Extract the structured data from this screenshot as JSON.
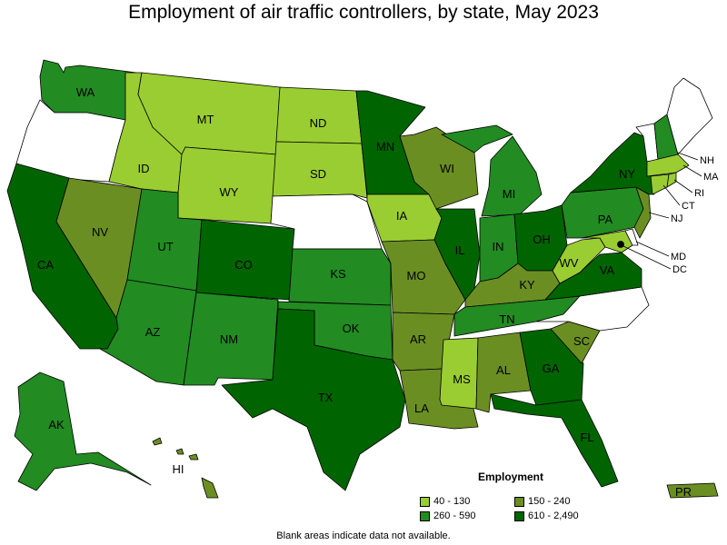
{
  "title": "Employment of air traffic controllers, by state, May 2023",
  "legend": {
    "title": "Employment",
    "items": [
      {
        "label": "40 - 130",
        "color": "#9acd32"
      },
      {
        "label": "150 - 240",
        "color": "#6b8e23"
      },
      {
        "label": "260 - 590",
        "color": "#228b22"
      },
      {
        "label": "610 - 2,490",
        "color": "#006400"
      }
    ]
  },
  "note": "Blank areas indicate data not available.",
  "colors": {
    "blank": "#ffffff",
    "40-130": "#9acd32",
    "150-240": "#6b8e23",
    "260-590": "#228b22",
    "610-2490": "#006400"
  },
  "states": {
    "WA": "260 - 590",
    "OR": "Blank",
    "CA": "610 - 2,490",
    "NV": "150 - 240",
    "ID": "40 - 130",
    "MT": "40 - 130",
    "WY": "40 - 130",
    "UT": "260 - 590",
    "AZ": "260 - 590",
    "CO": "610 - 2,490",
    "NM": "260 - 590",
    "ND": "40 - 130",
    "SD": "40 - 130",
    "NE": "Blank",
    "KS": "260 - 590",
    "OK": "260 - 590",
    "TX": "610 - 2,490",
    "MN": "610 - 2,490",
    "IA": "40 - 130",
    "MO": "150 - 240",
    "AR": "150 - 240",
    "LA": "150 - 240",
    "WI": "150 - 240",
    "IL": "610 - 2,490",
    "MI": "260 - 590",
    "IN": "260 - 590",
    "OH": "610 - 2,490",
    "KY": "150 - 240",
    "TN": "260 - 590",
    "MS": "40 - 130",
    "AL": "150 - 240",
    "GA": "610 - 2,490",
    "FL": "610 - 2,490",
    "SC": "150 - 240",
    "NC": "Blank",
    "VA": "610 - 2,490",
    "WV": "40 - 130",
    "MD": "40 - 130",
    "DE": "Blank",
    "DC": "610 - 2,490",
    "PA": "260 - 590",
    "NJ": "150 - 240",
    "NY": "610 - 2,490",
    "CT": "40 - 130",
    "RI": "40 - 130",
    "MA": "40 - 130",
    "VT": "Blank",
    "NH": "260 - 590",
    "ME": "Blank",
    "AK": "260 - 590",
    "HI": "150 - 240",
    "PR": "150 - 240"
  },
  "labels": {
    "WA": "WA",
    "CA": "CA",
    "NV": "NV",
    "ID": "ID",
    "MT": "MT",
    "WY": "WY",
    "UT": "UT",
    "AZ": "AZ",
    "CO": "CO",
    "NM": "NM",
    "ND": "ND",
    "SD": "SD",
    "KS": "KS",
    "OK": "OK",
    "TX": "TX",
    "MN": "MN",
    "IA": "IA",
    "MO": "MO",
    "AR": "AR",
    "LA": "LA",
    "WI": "WI",
    "IL": "IL",
    "MI": "MI",
    "IN": "IN",
    "OH": "OH",
    "KY": "KY",
    "TN": "TN",
    "MS": "MS",
    "AL": "AL",
    "GA": "GA",
    "FL": "FL",
    "SC": "SC",
    "VA": "VA",
    "WV": "WV",
    "PA": "PA",
    "NY": "NY",
    "AK": "AK",
    "HI": "HI",
    "PR": "PR",
    "NH": "NH",
    "MA": "MA",
    "RI": "RI",
    "CT": "CT",
    "NJ": "NJ",
    "MD": "MD",
    "DC": "DC"
  }
}
